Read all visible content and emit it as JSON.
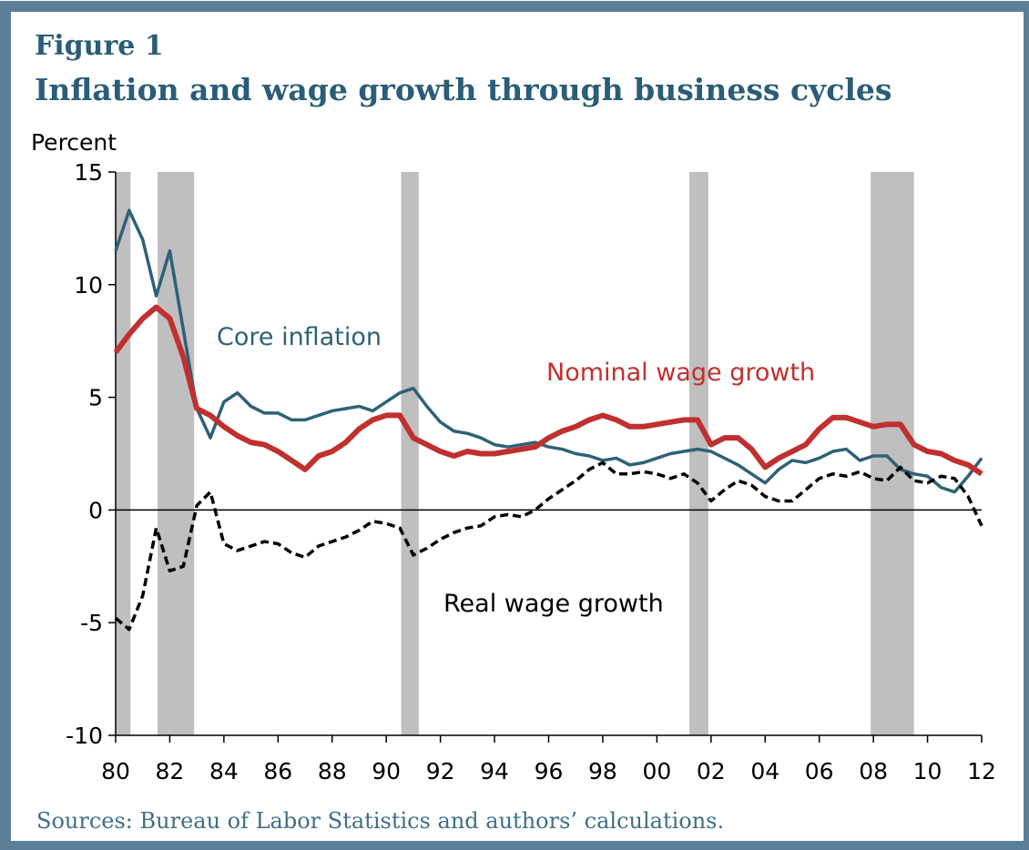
{
  "chart_data": {
    "type": "line",
    "figure_label": "Figure 1",
    "title": "Inflation and wage growth through business cycles",
    "ylabel": "Percent",
    "source": "Sources: Bureau of Labor Statistics and authors’ calculations.",
    "x": [
      1980,
      1980.5,
      1981,
      1981.5,
      1982,
      1982.5,
      1983,
      1983.5,
      1984,
      1984.5,
      1985,
      1985.5,
      1986,
      1986.5,
      1987,
      1987.5,
      1988,
      1988.5,
      1989,
      1989.5,
      1990,
      1990.5,
      1991,
      1991.5,
      1992,
      1992.5,
      1993,
      1993.5,
      1994,
      1994.5,
      1995,
      1995.5,
      1996,
      1996.5,
      1997,
      1997.5,
      1998,
      1998.5,
      1999,
      1999.5,
      2000,
      2000.5,
      2001,
      2001.5,
      2002,
      2002.5,
      2003,
      2003.5,
      2004,
      2004.5,
      2005,
      2005.5,
      2006,
      2006.5,
      2007,
      2007.5,
      2008,
      2008.5,
      2009,
      2009.5,
      2010,
      2010.5,
      2011,
      2011.5,
      2012
    ],
    "series": [
      {
        "name": "Core inflation",
        "color": "#2e6178",
        "width": 3.5,
        "dash": false,
        "values": [
          11.5,
          13.3,
          12.0,
          9.5,
          11.5,
          8.0,
          4.5,
          3.2,
          4.8,
          5.2,
          4.6,
          4.3,
          4.3,
          4.0,
          4.0,
          4.2,
          4.4,
          4.5,
          4.6,
          4.4,
          4.8,
          5.2,
          5.4,
          4.6,
          3.9,
          3.5,
          3.4,
          3.2,
          2.9,
          2.8,
          2.9,
          3.0,
          2.8,
          2.7,
          2.5,
          2.4,
          2.2,
          2.3,
          2.0,
          2.1,
          2.3,
          2.5,
          2.6,
          2.7,
          2.6,
          2.3,
          2.0,
          1.6,
          1.2,
          1.8,
          2.2,
          2.1,
          2.3,
          2.6,
          2.7,
          2.2,
          2.4,
          2.4,
          1.8,
          1.6,
          1.5,
          1.0,
          0.8,
          1.5,
          2.3
        ]
      },
      {
        "name": "Nominal wage growth",
        "color": "#c0302f",
        "width": 6,
        "dash": false,
        "values": [
          7.0,
          7.8,
          8.5,
          9.0,
          8.5,
          6.8,
          4.5,
          4.2,
          3.7,
          3.3,
          3.0,
          2.9,
          2.6,
          2.2,
          1.8,
          2.4,
          2.6,
          3.0,
          3.6,
          4.0,
          4.2,
          4.2,
          3.2,
          2.9,
          2.6,
          2.4,
          2.6,
          2.5,
          2.5,
          2.6,
          2.7,
          2.8,
          3.2,
          3.5,
          3.7,
          4.0,
          4.2,
          4.0,
          3.7,
          3.7,
          3.8,
          3.9,
          4.0,
          4.0,
          2.9,
          3.2,
          3.2,
          2.7,
          1.9,
          2.3,
          2.6,
          2.9,
          3.6,
          4.1,
          4.1,
          3.9,
          3.7,
          3.8,
          3.8,
          2.9,
          2.6,
          2.5,
          2.2,
          2.0,
          1.6
        ]
      },
      {
        "name": "Real wage growth",
        "color": "#000000",
        "width": 3.5,
        "dash": true,
        "values": [
          -4.8,
          -5.3,
          -3.8,
          -0.8,
          -2.7,
          -2.5,
          0.2,
          0.8,
          -1.5,
          -1.8,
          -1.6,
          -1.4,
          -1.5,
          -1.9,
          -2.1,
          -1.6,
          -1.4,
          -1.2,
          -0.9,
          -0.5,
          -0.6,
          -0.8,
          -2.0,
          -1.7,
          -1.3,
          -1.0,
          -0.8,
          -0.7,
          -0.3,
          -0.2,
          -0.3,
          0.0,
          0.5,
          0.9,
          1.3,
          1.8,
          2.1,
          1.6,
          1.6,
          1.7,
          1.6,
          1.4,
          1.6,
          1.2,
          0.4,
          0.9,
          1.3,
          1.1,
          0.6,
          0.4,
          0.4,
          0.9,
          1.4,
          1.6,
          1.5,
          1.7,
          1.4,
          1.3,
          1.9,
          1.3,
          1.2,
          1.5,
          1.4,
          0.6,
          -0.7
        ]
      }
    ],
    "recessions": [
      [
        1980.0,
        1980.55
      ],
      [
        1981.55,
        1982.9
      ],
      [
        1990.55,
        1991.2
      ],
      [
        2001.2,
        2001.9
      ],
      [
        2007.9,
        2009.5
      ]
    ],
    "recession_color": "#bfbfbf",
    "xlim": [
      1980,
      2012
    ],
    "xticks": [
      {
        "value": 1980,
        "label": "80"
      },
      {
        "value": 1982,
        "label": "82"
      },
      {
        "value": 1984,
        "label": "84"
      },
      {
        "value": 1986,
        "label": "86"
      },
      {
        "value": 1988,
        "label": "88"
      },
      {
        "value": 1990,
        "label": "90"
      },
      {
        "value": 1992,
        "label": "92"
      },
      {
        "value": 1994,
        "label": "94"
      },
      {
        "value": 1996,
        "label": "96"
      },
      {
        "value": 1998,
        "label": "98"
      },
      {
        "value": 2000,
        "label": "00"
      },
      {
        "value": 2002,
        "label": "02"
      },
      {
        "value": 2004,
        "label": "04"
      },
      {
        "value": 2006,
        "label": "06"
      },
      {
        "value": 2008,
        "label": "08"
      },
      {
        "value": 2010,
        "label": "10"
      },
      {
        "value": 2012,
        "label": "12"
      }
    ],
    "ylim": [
      -10,
      15
    ],
    "yticks": [
      -10,
      -5,
      0,
      5,
      10,
      15
    ],
    "zero_line": true
  }
}
